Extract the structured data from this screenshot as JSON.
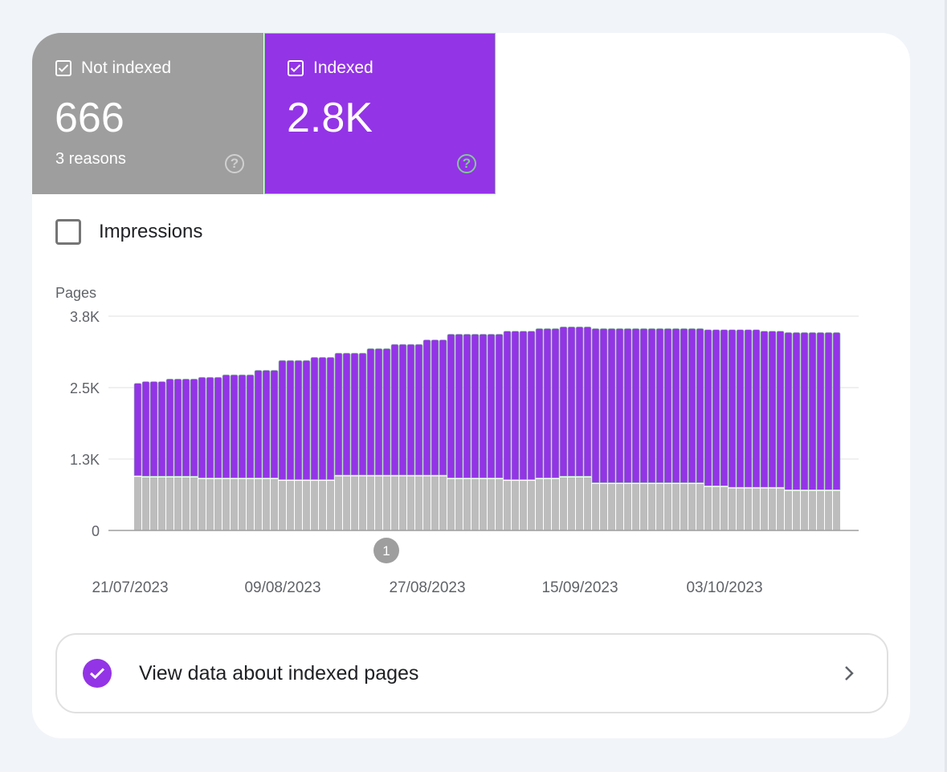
{
  "tiles": {
    "not_indexed": {
      "label": "Not indexed",
      "value": "666",
      "sub": "3 reasons",
      "color": "#9e9e9e"
    },
    "indexed": {
      "label": "Indexed",
      "value": "2.8K",
      "color": "#9334e6"
    }
  },
  "impressions_label": "Impressions",
  "view_button_label": "View data about indexed pages",
  "chart_data": {
    "type": "bar",
    "stacked": true,
    "ylabel": "Pages",
    "ylim": [
      0,
      3800
    ],
    "y_ticks": [
      {
        "value": 0,
        "label": "0"
      },
      {
        "value": 1267,
        "label": "1.3K"
      },
      {
        "value": 2533,
        "label": "2.5K"
      },
      {
        "value": 3800,
        "label": "3.8K"
      }
    ],
    "x_start_date": "22/07/2023",
    "x_interval": "day",
    "x_ticks": [
      {
        "offset": -1,
        "label": "21/07/2023"
      },
      {
        "offset": 18,
        "label": "09/08/2023"
      },
      {
        "offset": 36,
        "label": "27/08/2023"
      },
      {
        "offset": 55,
        "label": "15/09/2023"
      },
      {
        "offset": 73,
        "label": "03/10/2023"
      }
    ],
    "annotations": [
      {
        "offset": 31,
        "label": "1"
      }
    ],
    "grid": true,
    "series": [
      {
        "name": "Not indexed",
        "color": "#bdbdbd",
        "values": [
          950,
          940,
          940,
          940,
          940,
          940,
          940,
          940,
          910,
          910,
          910,
          910,
          910,
          910,
          910,
          910,
          910,
          910,
          880,
          880,
          880,
          880,
          880,
          880,
          880,
          960,
          960,
          960,
          960,
          960,
          960,
          960,
          960,
          960,
          960,
          960,
          960,
          960,
          960,
          910,
          910,
          910,
          910,
          910,
          910,
          910,
          880,
          880,
          880,
          880,
          910,
          910,
          910,
          940,
          940,
          940,
          940,
          825,
          825,
          825,
          825,
          825,
          825,
          825,
          825,
          825,
          825,
          825,
          825,
          825,
          825,
          770,
          770,
          770,
          745,
          745,
          745,
          745,
          745,
          745,
          745,
          700,
          700,
          700,
          700,
          700,
          700,
          700
        ]
      },
      {
        "name": "Indexed",
        "color": "#9334e6",
        "values": [
          1660,
          1700,
          1700,
          1700,
          1745,
          1745,
          1745,
          1745,
          1805,
          1805,
          1805,
          1850,
          1850,
          1850,
          1850,
          1930,
          1930,
          1930,
          2135,
          2135,
          2135,
          2135,
          2190,
          2190,
          2190,
          2185,
          2185,
          2185,
          2185,
          2265,
          2265,
          2265,
          2340,
          2340,
          2340,
          2340,
          2420,
          2420,
          2420,
          2570,
          2570,
          2570,
          2570,
          2570,
          2570,
          2570,
          2655,
          2655,
          2655,
          2655,
          2670,
          2670,
          2670,
          2670,
          2670,
          2670,
          2670,
          2755,
          2755,
          2755,
          2755,
          2755,
          2755,
          2755,
          2755,
          2755,
          2755,
          2755,
          2755,
          2755,
          2755,
          2790,
          2790,
          2790,
          2815,
          2815,
          2815,
          2815,
          2790,
          2790,
          2790,
          2810,
          2810,
          2810,
          2810,
          2810,
          2810,
          2810
        ]
      }
    ]
  }
}
